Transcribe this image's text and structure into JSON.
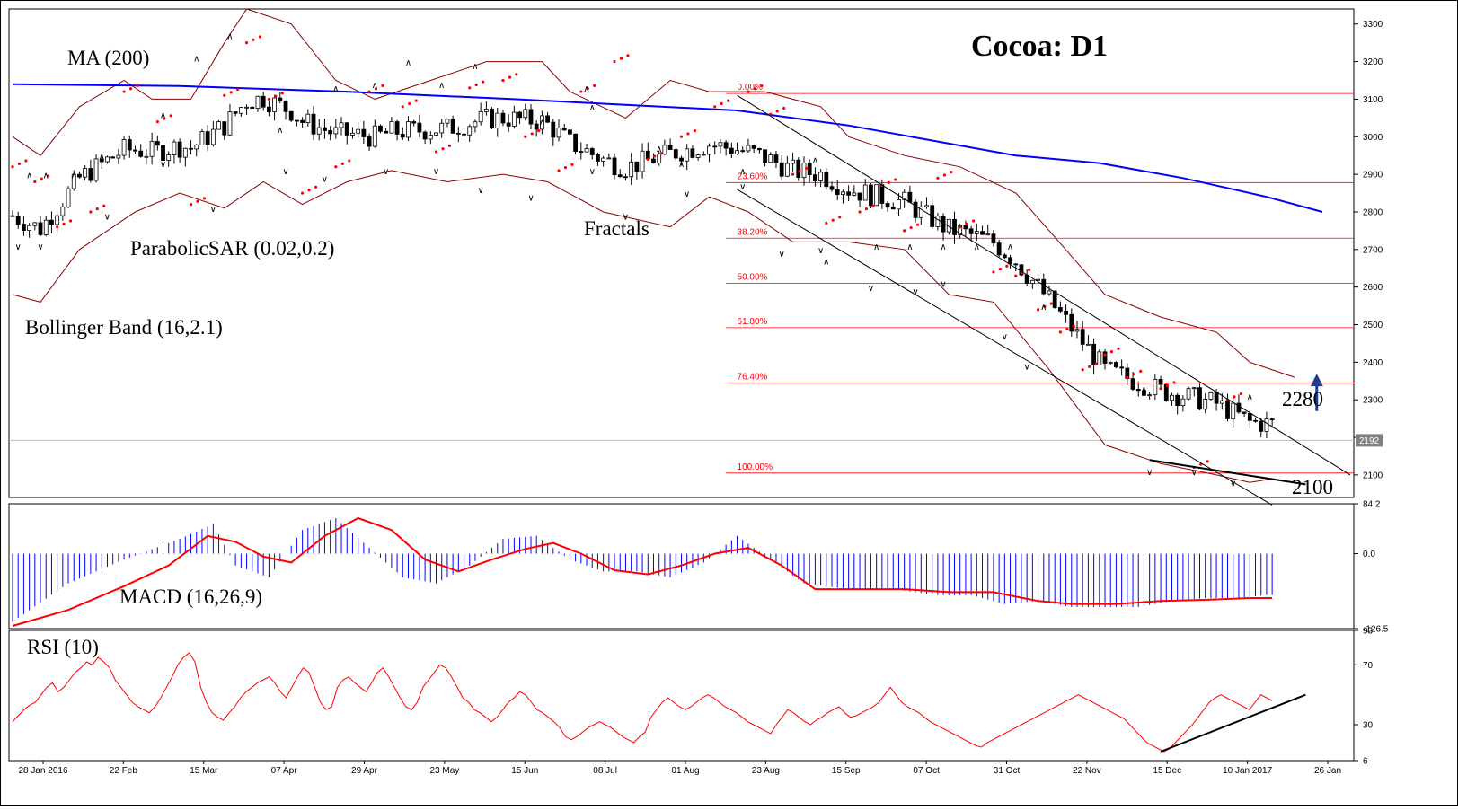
{
  "chart_data": [
    {
      "panel": "price",
      "type": "candlestick",
      "title": "Cocoa: D1",
      "ylim": [
        2040,
        3340
      ],
      "y_ticks": [
        2100,
        2200,
        2300,
        2400,
        2500,
        2600,
        2700,
        2800,
        2900,
        3000,
        3100,
        3200,
        3300
      ],
      "current_price": "2192",
      "annotations": [
        {
          "text": "MA (200)"
        },
        {
          "text": "ParabolicSAR (0.02,0.2)"
        },
        {
          "text": "Bollinger Band (16,2.1)"
        },
        {
          "text": "Fractals"
        },
        {
          "text": "2280"
        },
        {
          "text": "2100"
        }
      ],
      "fibonacci": [
        {
          "label": "0.00%",
          "value": 3115
        },
        {
          "label": "23.60%",
          "value": 2878
        },
        {
          "label": "38.20%",
          "value": 2730
        },
        {
          "label": "50.00%",
          "value": 2610
        },
        {
          "label": "61.80%",
          "value": 2492
        },
        {
          "label": "76.40%",
          "value": 2345
        },
        {
          "label": "100.00%",
          "value": 2105
        }
      ],
      "ma200": [
        [
          0,
          3140
        ],
        [
          30,
          3135
        ],
        [
          60,
          3120
        ],
        [
          90,
          3100
        ],
        [
          110,
          3085
        ],
        [
          130,
          3070
        ],
        [
          150,
          3030
        ],
        [
          165,
          2990
        ],
        [
          180,
          2950
        ],
        [
          195,
          2930
        ],
        [
          210,
          2890
        ],
        [
          225,
          2840
        ],
        [
          235,
          2800
        ]
      ],
      "bb_upper": [
        [
          0,
          3000
        ],
        [
          5,
          2950
        ],
        [
          12,
          3080
        ],
        [
          20,
          3150
        ],
        [
          25,
          3100
        ],
        [
          32,
          3100
        ],
        [
          38,
          3250
        ],
        [
          42,
          3340
        ],
        [
          50,
          3300
        ],
        [
          58,
          3150
        ],
        [
          65,
          3100
        ],
        [
          75,
          3150
        ],
        [
          85,
          3200
        ],
        [
          95,
          3200
        ],
        [
          100,
          3120
        ],
        [
          110,
          3050
        ],
        [
          118,
          3150
        ],
        [
          125,
          3120
        ],
        [
          135,
          3120
        ],
        [
          145,
          3080
        ],
        [
          150,
          3000
        ],
        [
          160,
          2950
        ],
        [
          170,
          2920
        ],
        [
          180,
          2850
        ],
        [
          186,
          2750
        ],
        [
          196,
          2580
        ],
        [
          206,
          2520
        ],
        [
          216,
          2480
        ],
        [
          222,
          2400
        ],
        [
          230,
          2360
        ]
      ],
      "bb_lower": [
        [
          0,
          2580
        ],
        [
          5,
          2560
        ],
        [
          12,
          2700
        ],
        [
          22,
          2800
        ],
        [
          30,
          2850
        ],
        [
          38,
          2810
        ],
        [
          45,
          2880
        ],
        [
          52,
          2820
        ],
        [
          60,
          2880
        ],
        [
          68,
          2910
        ],
        [
          78,
          2880
        ],
        [
          88,
          2900
        ],
        [
          96,
          2880
        ],
        [
          106,
          2800
        ],
        [
          118,
          2760
        ],
        [
          125,
          2840
        ],
        [
          132,
          2800
        ],
        [
          140,
          2720
        ],
        [
          150,
          2720
        ],
        [
          160,
          2700
        ],
        [
          168,
          2580
        ],
        [
          176,
          2560
        ],
        [
          186,
          2380
        ],
        [
          196,
          2180
        ],
        [
          206,
          2130
        ],
        [
          216,
          2100
        ],
        [
          222,
          2080
        ],
        [
          226,
          2090
        ]
      ],
      "sar": [
        [
          0,
          2920
        ],
        [
          4,
          2880
        ],
        [
          8,
          2760
        ],
        [
          14,
          2800
        ],
        [
          20,
          3120
        ],
        [
          26,
          3040
        ],
        [
          32,
          2820
        ],
        [
          38,
          3110
        ],
        [
          42,
          3250
        ],
        [
          46,
          3100
        ],
        [
          52,
          2850
        ],
        [
          58,
          2920
        ],
        [
          64,
          3120
        ],
        [
          70,
          3080
        ],
        [
          76,
          2960
        ],
        [
          82,
          3130
        ],
        [
          88,
          3150
        ],
        [
          92,
          3000
        ],
        [
          98,
          2910
        ],
        [
          102,
          3120
        ],
        [
          108,
          3200
        ],
        [
          114,
          2940
        ],
        [
          120,
          3000
        ],
        [
          126,
          3080
        ],
        [
          132,
          3120
        ],
        [
          136,
          3060
        ],
        [
          140,
          2900
        ],
        [
          146,
          2770
        ],
        [
          152,
          2800
        ],
        [
          156,
          2870
        ],
        [
          160,
          2750
        ],
        [
          166,
          2890
        ],
        [
          170,
          2760
        ],
        [
          176,
          2640
        ],
        [
          180,
          2630
        ],
        [
          184,
          2540
        ],
        [
          188,
          2480
        ],
        [
          192,
          2380
        ],
        [
          196,
          2420
        ],
        [
          200,
          2360
        ],
        [
          206,
          2330
        ],
        [
          212,
          2120
        ],
        [
          218,
          2300
        ]
      ],
      "fractals_up": [
        [
          3,
          2890
        ],
        [
          6,
          2890
        ],
        [
          11,
          2890
        ],
        [
          16,
          2940
        ],
        [
          27,
          3050
        ],
        [
          33,
          3200
        ],
        [
          39,
          3260
        ],
        [
          48,
          3010
        ],
        [
          58,
          3120
        ],
        [
          65,
          3130
        ],
        [
          71,
          3190
        ],
        [
          77,
          3130
        ],
        [
          83,
          3180
        ],
        [
          95,
          3030
        ],
        [
          103,
          3120
        ],
        [
          104,
          3070
        ],
        [
          116,
          2960
        ],
        [
          120,
          2920
        ],
        [
          131,
          2900
        ],
        [
          144,
          2930
        ],
        [
          146,
          2660
        ],
        [
          155,
          2700
        ],
        [
          161,
          2700
        ],
        [
          167,
          2700
        ],
        [
          173,
          2700
        ],
        [
          179,
          2700
        ],
        [
          185,
          2540
        ],
        [
          203,
          2320
        ],
        [
          222,
          2300
        ]
      ],
      "fractals_down": [
        [
          1,
          2700
        ],
        [
          5,
          2700
        ],
        [
          17,
          2780
        ],
        [
          27,
          2920
        ],
        [
          36,
          2800
        ],
        [
          49,
          2900
        ],
        [
          56,
          2880
        ],
        [
          67,
          2900
        ],
        [
          76,
          2900
        ],
        [
          84,
          2850
        ],
        [
          93,
          2830
        ],
        [
          104,
          2900
        ],
        [
          110,
          2780
        ],
        [
          121,
          2840
        ],
        [
          131,
          2860
        ],
        [
          138,
          2680
        ],
        [
          145,
          2690
        ],
        [
          154,
          2590
        ],
        [
          162,
          2580
        ],
        [
          167,
          2600
        ],
        [
          178,
          2460
        ],
        [
          182,
          2380
        ],
        [
          204,
          2100
        ],
        [
          212,
          2100
        ],
        [
          219,
          2070
        ]
      ],
      "channel_upper": [
        [
          130,
          3110
        ],
        [
          240,
          2100
        ]
      ],
      "channel_lower": [
        [
          130,
          2860
        ],
        [
          226,
          2020
        ]
      ],
      "support_line": [
        [
          204,
          2140
        ],
        [
          232,
          2075
        ]
      ],
      "arrow": {
        "at": 234,
        "from": 2270,
        "to": 2360
      }
    },
    {
      "panel": "macd",
      "type": "bar",
      "title": "MACD (16,26,9)",
      "ylim": [
        -126.5,
        84.2
      ],
      "y_ticks": [
        84.2,
        0.0,
        -126.5
      ],
      "histogram": [
        [
          0,
          -115
        ],
        [
          10,
          -50
        ],
        [
          20,
          -10
        ],
        [
          30,
          25
        ],
        [
          36,
          50
        ],
        [
          40,
          -20
        ],
        [
          46,
          -40
        ],
        [
          52,
          40
        ],
        [
          58,
          60
        ],
        [
          64,
          10
        ],
        [
          70,
          -40
        ],
        [
          76,
          -50
        ],
        [
          82,
          -20
        ],
        [
          88,
          25
        ],
        [
          94,
          30
        ],
        [
          100,
          -10
        ],
        [
          106,
          -30
        ],
        [
          112,
          -30
        ],
        [
          118,
          -40
        ],
        [
          124,
          -15
        ],
        [
          130,
          30
        ],
        [
          136,
          -10
        ],
        [
          142,
          -50
        ],
        [
          150,
          -60
        ],
        [
          158,
          -60
        ],
        [
          166,
          -70
        ],
        [
          172,
          -70
        ],
        [
          178,
          -85
        ],
        [
          184,
          -80
        ],
        [
          190,
          -90
        ],
        [
          196,
          -90
        ],
        [
          202,
          -90
        ],
        [
          208,
          -80
        ],
        [
          214,
          -75
        ],
        [
          220,
          -75
        ],
        [
          225,
          -70
        ]
      ],
      "signal": [
        [
          0,
          -122
        ],
        [
          10,
          -95
        ],
        [
          20,
          -55
        ],
        [
          28,
          -20
        ],
        [
          35,
          30
        ],
        [
          40,
          20
        ],
        [
          45,
          -5
        ],
        [
          50,
          -15
        ],
        [
          56,
          30
        ],
        [
          62,
          60
        ],
        [
          68,
          40
        ],
        [
          74,
          -10
        ],
        [
          80,
          -30
        ],
        [
          86,
          -10
        ],
        [
          92,
          8
        ],
        [
          97,
          18
        ],
        [
          102,
          0
        ],
        [
          108,
          -28
        ],
        [
          114,
          -35
        ],
        [
          120,
          -20
        ],
        [
          126,
          0
        ],
        [
          132,
          10
        ],
        [
          138,
          -20
        ],
        [
          144,
          -60
        ],
        [
          152,
          -60
        ],
        [
          160,
          -60
        ],
        [
          168,
          -65
        ],
        [
          176,
          -65
        ],
        [
          184,
          -80
        ],
        [
          190,
          -85
        ],
        [
          198,
          -85
        ],
        [
          206,
          -80
        ],
        [
          214,
          -78
        ],
        [
          222,
          -75
        ],
        [
          226,
          -75
        ]
      ]
    },
    {
      "panel": "rsi",
      "type": "line",
      "title": "RSI (10)",
      "ylim": [
        6,
        93
      ],
      "y_ticks": [
        93,
        70,
        30,
        6
      ],
      "x_tick_labels": [
        "28 Jan 2016",
        "22 Feb",
        "15 Mar",
        "07 Apr",
        "29 Apr",
        "23 May",
        "15 Jun",
        "08 Jul",
        "01 Aug",
        "23 Aug",
        "15 Sep",
        "07 Oct",
        "31 Oct",
        "22 Nov",
        "15 Dec",
        "10 Jan 2017",
        "26 Jan"
      ],
      "values": [
        32,
        36,
        40,
        43,
        45,
        50,
        55,
        58,
        52,
        55,
        60,
        65,
        68,
        72,
        70,
        75,
        72,
        68,
        60,
        55,
        50,
        45,
        42,
        40,
        38,
        42,
        48,
        55,
        62,
        70,
        75,
        78,
        72,
        55,
        45,
        38,
        35,
        33,
        38,
        42,
        48,
        52,
        55,
        58,
        60,
        62,
        58,
        52,
        48,
        55,
        62,
        68,
        65,
        55,
        45,
        40,
        42,
        55,
        60,
        62,
        58,
        55,
        52,
        58,
        65,
        68,
        62,
        55,
        48,
        42,
        40,
        45,
        55,
        60,
        65,
        70,
        68,
        62,
        55,
        48,
        45,
        40,
        38,
        35,
        32,
        35,
        40,
        45,
        48,
        52,
        50,
        45,
        40,
        38,
        35,
        32,
        28,
        22,
        20,
        22,
        25,
        28,
        30,
        32,
        30,
        28,
        25,
        22,
        20,
        18,
        22,
        25,
        35,
        40,
        45,
        48,
        45,
        42,
        40,
        42,
        45,
        48,
        50,
        48,
        45,
        42,
        40,
        38,
        35,
        32,
        30,
        28,
        26,
        24,
        30,
        35,
        40,
        38,
        35,
        32,
        30,
        33,
        35,
        38,
        40,
        42,
        38,
        35,
        36,
        38,
        40,
        42,
        45,
        50,
        55,
        50,
        45,
        42,
        40,
        38,
        35,
        32,
        30,
        28,
        26,
        24,
        22,
        20,
        18,
        16,
        15,
        18,
        20,
        22,
        24,
        26,
        28,
        30,
        32,
        34,
        36,
        38,
        40,
        42,
        44,
        46,
        48,
        50,
        48,
        46,
        44,
        42,
        40,
        38,
        36,
        34,
        30,
        26,
        22,
        18,
        16,
        14,
        12,
        14,
        18,
        22,
        26,
        30,
        35,
        40,
        45,
        48,
        50,
        48,
        46,
        44,
        42,
        40,
        45,
        50,
        48,
        46
      ],
      "trendline": [
        [
          206,
          12
        ],
        [
          232,
          50
        ]
      ]
    }
  ]
}
